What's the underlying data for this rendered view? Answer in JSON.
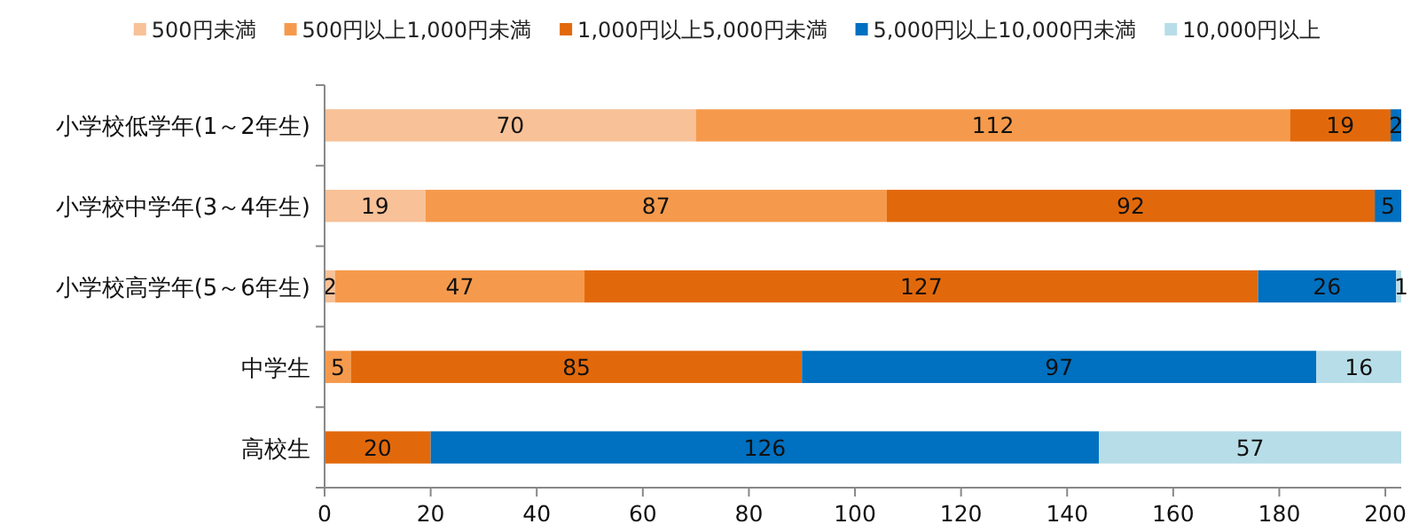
{
  "chart_data": {
    "type": "bar",
    "orientation": "horizontal",
    "stacked": true,
    "data_labels": true,
    "legend": "top",
    "grid": false,
    "categories": [
      "小学校低学年(1～2年生)",
      "小学校中学年(3～4年生)",
      "小学校高学年(5～6年生)",
      "中学生",
      "高校生"
    ],
    "series": [
      {
        "name": "500円未満",
        "color": "#f8c197",
        "values": [
          70,
          19,
          2,
          null,
          null
        ]
      },
      {
        "name": "500円以上1,000円未満",
        "color": "#f59a4c",
        "values": [
          112,
          87,
          47,
          5,
          null
        ]
      },
      {
        "name": "1,000円以上5,000円未満",
        "color": "#e2690b",
        "values": [
          19,
          92,
          127,
          85,
          20
        ]
      },
      {
        "name": "5,000円以上10,000円未満",
        "color": "#0070c0",
        "values": [
          2,
          5,
          26,
          97,
          126
        ]
      },
      {
        "name": "10,000円以上",
        "color": "#b7dde8",
        "values": [
          null,
          null,
          1,
          16,
          57
        ]
      }
    ],
    "xlim": [
      0,
      203
    ],
    "xticks": [
      0,
      20,
      40,
      60,
      80,
      100,
      120,
      140,
      160,
      180,
      200
    ]
  }
}
